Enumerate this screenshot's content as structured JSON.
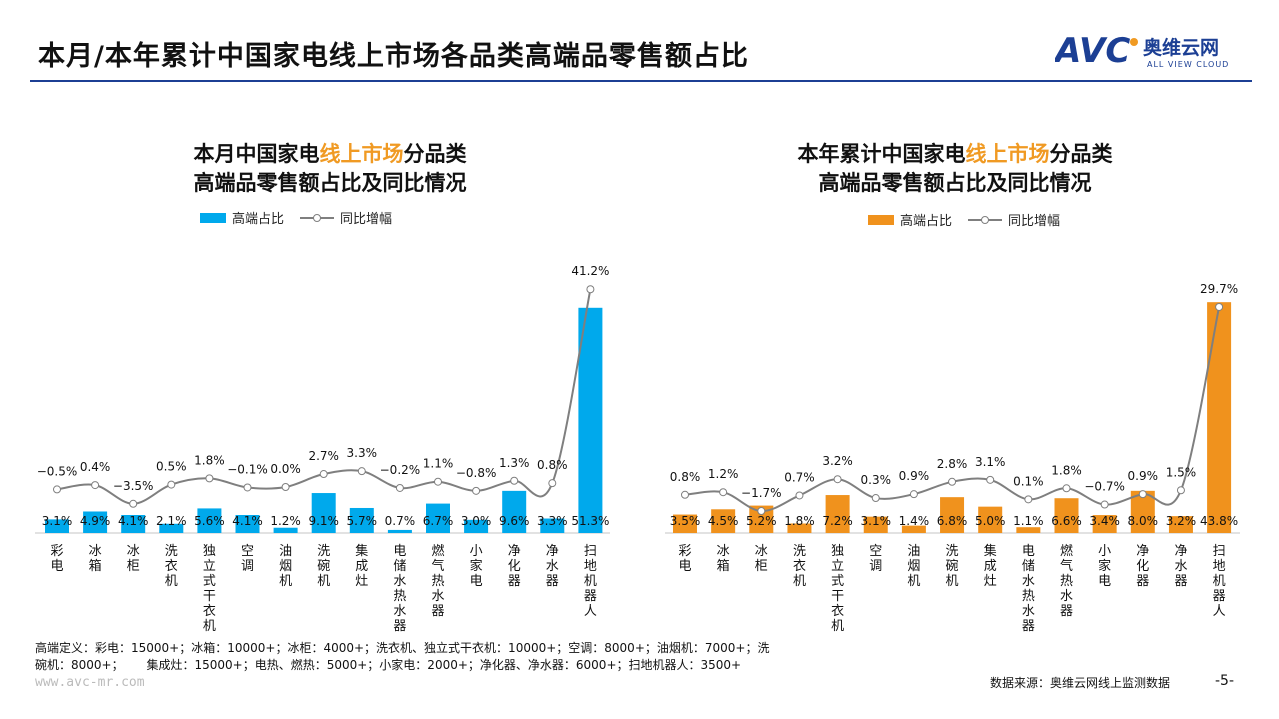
{
  "header": {
    "title": "本月/本年累计中国家电线上市场各品类高端品零售额占比",
    "logo_text": "AVC",
    "logo_cn": "奥维云网",
    "logo_en": "ALL VIEW CLOUD"
  },
  "colors": {
    "left_bar": "#00a9ec",
    "right_bar": "#f0921d",
    "line": "#7f7f7f",
    "accent": "#f09a23",
    "brand": "#1c3f94"
  },
  "chart_data": [
    {
      "type": "bar",
      "title_pre": "本月中国家电",
      "title_hl": "线上市场",
      "title_post": "分品类",
      "title_line2": "高端品零售额占比及同比情况",
      "categories": [
        "彩电",
        "冰箱",
        "冰柜",
        "洗衣机",
        "独立式干衣机",
        "空调",
        "油烟机",
        "洗碗机",
        "集成灶",
        "电储水热水器",
        "燃气热水器",
        "小家电",
        "净化器",
        "净水器",
        "扫地机器人"
      ],
      "series": [
        {
          "name": "高端占比",
          "type": "bar",
          "values": [
            3.1,
            4.9,
            4.1,
            2.1,
            5.6,
            4.1,
            1.2,
            9.1,
            5.7,
            0.7,
            6.7,
            3.0,
            9.6,
            3.3,
            51.3
          ]
        },
        {
          "name": "同比增幅",
          "type": "line",
          "values": [
            -0.5,
            0.4,
            -3.5,
            0.5,
            1.8,
            -0.1,
            0.0,
            2.7,
            3.3,
            -0.2,
            1.1,
            -0.8,
            1.3,
            0.8,
            41.2
          ]
        }
      ],
      "legend": "top"
    },
    {
      "type": "bar",
      "title_pre": "本年累计中国家电",
      "title_hl": "线上市场",
      "title_post": "分品类",
      "title_line2": "高端品零售额占比及同比情况",
      "categories": [
        "彩电",
        "冰箱",
        "冰柜",
        "洗衣机",
        "独立式干衣机",
        "空调",
        "油烟机",
        "洗碗机",
        "集成灶",
        "电储水热水器",
        "燃气热水器",
        "小家电",
        "净化器",
        "净水器",
        "扫地机器人"
      ],
      "series": [
        {
          "name": "高端占比",
          "type": "bar",
          "values": [
            3.5,
            4.5,
            5.2,
            1.8,
            7.2,
            3.1,
            1.4,
            6.8,
            5.0,
            1.1,
            6.6,
            3.4,
            8.0,
            3.2,
            43.8
          ]
        },
        {
          "name": "同比增幅",
          "type": "line",
          "values": [
            0.8,
            1.2,
            -1.7,
            0.7,
            3.2,
            0.3,
            0.9,
            2.8,
            3.1,
            0.1,
            1.8,
            -0.7,
            0.9,
            1.5,
            29.7
          ]
        }
      ],
      "legend": "top"
    }
  ],
  "footer": {
    "definition_line1": "高端定义：彩电：15000+；冰箱：10000+；冰柜：4000+；洗衣机、独立式干衣机：10000+；空调：8000+；油烟机：7000+；洗",
    "definition_line2": "碗机：8000+；      集成灶：15000+；电热、燃热：5000+；小家电：2000+；净化器、净水器：6000+；扫地机器人：3500+",
    "website": "www.avc-mr.com",
    "source": "数据来源：奥维云网线上监测数据",
    "page": "-5-"
  }
}
